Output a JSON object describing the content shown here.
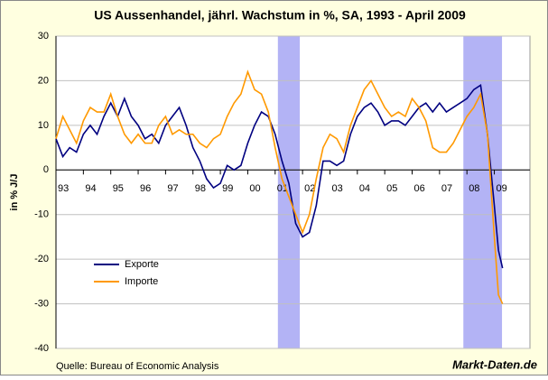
{
  "chart_data": {
    "type": "line",
    "title": "US Aussenhandel, jährl. Wachstum in %, SA, 1993 - April 2009",
    "y_label": "in % J/J",
    "source": "Quelle: Bureau of Economic Analysis",
    "brand": "Markt-Daten.de",
    "x": [
      1993,
      1993.25,
      1993.5,
      1993.75,
      1994,
      1994.25,
      1994.5,
      1994.75,
      1995,
      1995.25,
      1995.5,
      1995.75,
      1996,
      1996.25,
      1996.5,
      1996.75,
      1997,
      1997.25,
      1997.5,
      1997.75,
      1998,
      1998.25,
      1998.5,
      1998.75,
      1999,
      1999.25,
      1999.5,
      1999.75,
      2000,
      2000.25,
      2000.5,
      2000.75,
      2001,
      2001.25,
      2001.5,
      2001.75,
      2002,
      2002.25,
      2002.5,
      2002.75,
      2003,
      2003.25,
      2003.5,
      2003.75,
      2004,
      2004.25,
      2004.5,
      2004.75,
      2005,
      2005.25,
      2005.5,
      2005.75,
      2006,
      2006.25,
      2006.5,
      2006.75,
      2007,
      2007.25,
      2007.5,
      2007.75,
      2008,
      2008.25,
      2008.5,
      2008.75,
      2009,
      2009.15,
      2009.3
    ],
    "series": [
      {
        "name": "Exporte",
        "color": "#000080",
        "values": [
          7,
          3,
          5,
          4,
          8,
          10,
          8,
          12,
          15,
          12,
          16,
          12,
          10,
          7,
          8,
          6,
          10,
          12,
          14,
          10,
          5,
          2,
          -2,
          -4,
          -3,
          1,
          0,
          1,
          6,
          10,
          13,
          12,
          8,
          2,
          -3,
          -12,
          -15,
          -14,
          -8,
          2,
          2,
          1,
          2,
          8,
          12,
          14,
          15,
          13,
          10,
          11,
          11,
          10,
          12,
          14,
          15,
          13,
          15,
          13,
          14,
          15,
          16,
          18,
          19,
          8,
          -8,
          -18,
          -22
        ]
      },
      {
        "name": "Importe",
        "color": "#ff9900",
        "values": [
          7,
          12,
          9,
          6,
          11,
          14,
          13,
          13,
          17,
          12,
          8,
          6,
          8,
          6,
          6,
          10,
          12,
          8,
          9,
          8,
          8,
          6,
          5,
          7,
          8,
          12,
          15,
          17,
          22,
          18,
          17,
          13,
          5,
          -2,
          -6,
          -10,
          -14,
          -10,
          -2,
          5,
          8,
          7,
          4,
          10,
          14,
          18,
          20,
          17,
          14,
          12,
          13,
          12,
          16,
          14,
          11,
          5,
          4,
          4,
          6,
          9,
          12,
          14,
          17,
          8,
          -15,
          -28,
          -30
        ]
      }
    ],
    "shaded_ranges": [
      [
        2001.1,
        2001.9
      ],
      [
        2007.87,
        2009.28
      ]
    ],
    "shade_color": "#b3b3f5",
    "xlim": [
      1993,
      2010.3
    ],
    "xticks": [
      {
        "value": 1993,
        "label": "93"
      },
      {
        "value": 1994,
        "label": "94"
      },
      {
        "value": 1995,
        "label": "95"
      },
      {
        "value": 1996,
        "label": "96"
      },
      {
        "value": 1997,
        "label": "97"
      },
      {
        "value": 1998,
        "label": "98"
      },
      {
        "value": 1999,
        "label": "99"
      },
      {
        "value": 2000,
        "label": "00"
      },
      {
        "value": 2001,
        "label": "01"
      },
      {
        "value": 2002,
        "label": "02"
      },
      {
        "value": 2003,
        "label": "03"
      },
      {
        "value": 2004,
        "label": "04"
      },
      {
        "value": 2005,
        "label": "05"
      },
      {
        "value": 2006,
        "label": "06"
      },
      {
        "value": 2007,
        "label": "07"
      },
      {
        "value": 2008,
        "label": "08"
      },
      {
        "value": 2009,
        "label": "09"
      }
    ],
    "ylim": [
      -40,
      30
    ],
    "yticks": [
      -40,
      -30,
      -20,
      -10,
      0,
      10,
      20,
      30
    ],
    "grid": true,
    "legend": "lower left"
  }
}
